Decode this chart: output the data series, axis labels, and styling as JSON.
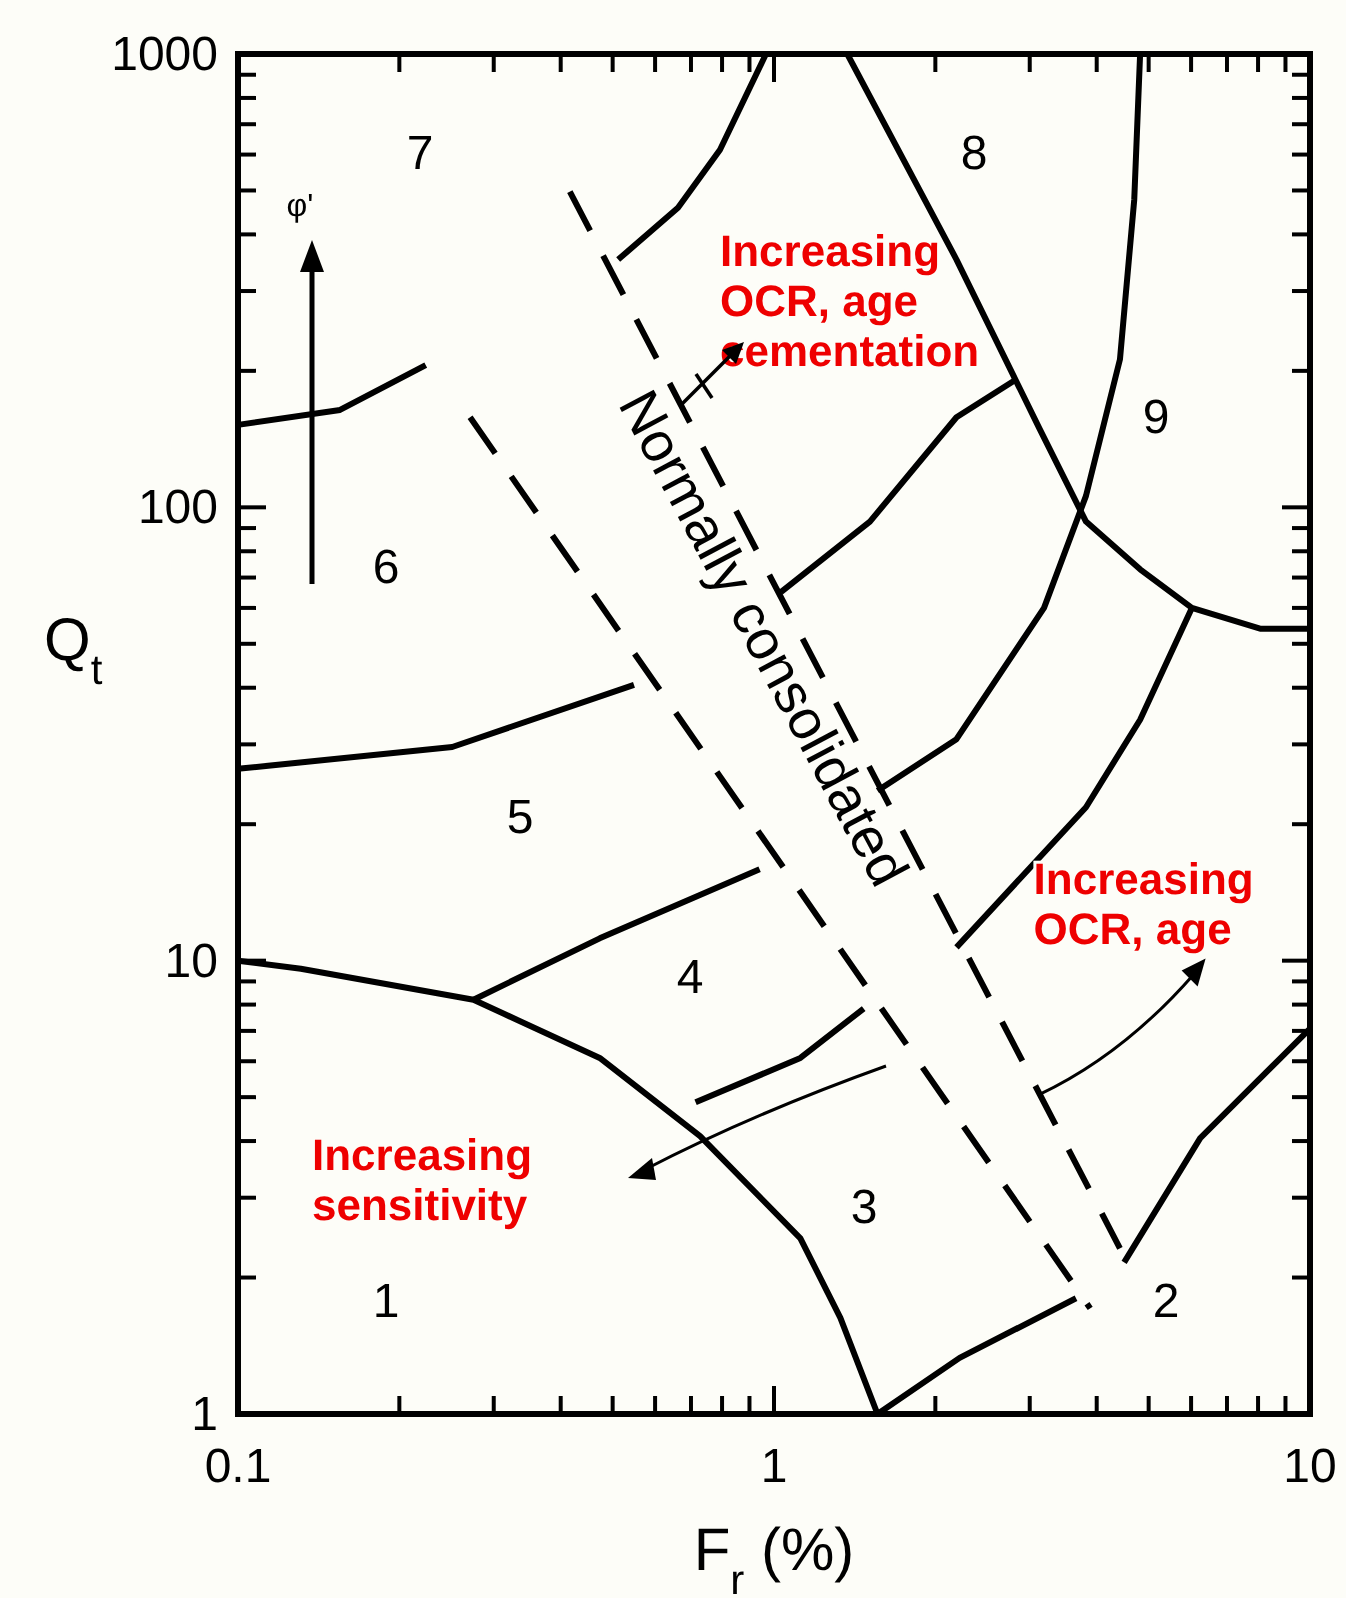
{
  "chart_data": {
    "type": "line",
    "xlabel": "F$_{r}$ (%)",
    "ylabel": "Q$_{t}$",
    "log": "xy",
    "grid": false,
    "marker": "none",
    "line_style": "solid",
    "xlim": [
      0.1,
      10
    ],
    "ylim": [
      1,
      1000
    ],
    "xticks": [
      {
        "value": 0.1,
        "label": "0.1"
      },
      {
        "value": 0.2,
        "label": null
      },
      {
        "value": 0.3,
        "label": null
      },
      {
        "value": 0.4,
        "label": null
      },
      {
        "value": 0.5,
        "label": null
      },
      {
        "value": 0.6,
        "label": null
      },
      {
        "value": 0.7,
        "label": null
      },
      {
        "value": 0.8,
        "label": null
      },
      {
        "value": 0.9,
        "label": null
      },
      1,
      {
        "value": 2,
        "label": null
      },
      {
        "value": 3,
        "label": null
      },
      {
        "value": 4,
        "label": null
      },
      {
        "value": 5,
        "label": null
      },
      {
        "value": 6,
        "label": null
      },
      {
        "value": 7,
        "label": null
      },
      {
        "value": 8,
        "label": null
      },
      {
        "value": 9,
        "label": null
      },
      10
    ],
    "yticks": [
      1,
      {
        "value": 2,
        "label": null
      },
      {
        "value": 3,
        "label": null
      },
      {
        "value": 4,
        "label": null
      },
      {
        "value": 5,
        "label": null
      },
      {
        "value": 6,
        "label": null
      },
      {
        "value": 7,
        "label": null
      },
      {
        "value": 8,
        "label": null
      },
      {
        "value": 9,
        "label": null
      },
      10,
      {
        "value": 20,
        "label": null
      },
      {
        "value": 30,
        "label": null
      },
      {
        "value": 40,
        "label": null
      },
      {
        "value": 50,
        "label": null
      },
      {
        "value": 60,
        "label": null
      },
      {
        "value": 70,
        "label": null
      },
      {
        "value": 80,
        "label": null
      },
      {
        "value": 90,
        "label": null
      },
      100,
      {
        "value": 200,
        "label": null
      },
      {
        "value": 300,
        "label": null
      },
      {
        "value": 400,
        "label": null
      },
      {
        "value": 500,
        "label": null
      },
      {
        "value": 600,
        "label": null
      },
      {
        "value": 700,
        "label": null
      },
      {
        "value": 800,
        "label": null
      },
      {
        "value": 900,
        "label": null
      },
      1000
    ],
    "series": [
      {
        "color": "#000000",
        "x": [
          0.1,
          0.131,
          0.275,
          0.473,
          0.728,
          1.12,
          1.33,
          1.56
        ],
        "values": [
          10,
          9.6,
          8.2,
          6.1,
          4.1,
          2.44,
          1.63,
          1
        ]
      },
      {
        "color": "#000000",
        "x": [
          1.56,
          2.22,
          3.66
        ],
        "values": [
          1,
          1.33,
          1.8
        ]
      },
      {
        "color": "#000000",
        "x": [
          4.5,
          6.24,
          8.79,
          10
        ],
        "values": [
          2.16,
          4.06,
          6.08,
          7.08
        ]
      },
      {
        "color": "#000000",
        "x": [
          0.714,
          1.12,
          1.47
        ],
        "values": [
          4.87,
          6.1,
          7.84
        ]
      },
      {
        "color": "#000000",
        "x": [
          2.19,
          3.82,
          4.82,
          6.02
        ],
        "values": [
          10.7,
          21.8,
          34,
          60
        ]
      },
      {
        "color": "#000000",
        "x": [
          0.275,
          0.473,
          0.94
        ],
        "values": [
          8.2,
          11.2,
          15.9
        ]
      },
      {
        "color": "#000000",
        "x": [
          1.56,
          2.19,
          3.19,
          3.82,
          4.42,
          4.7,
          4.82
        ],
        "values": [
          23.7,
          30.8,
          60,
          106,
          212,
          477,
          1000
        ]
      },
      {
        "color": "#000000",
        "x": [
          0.1,
          0.251,
          0.548
        ],
        "values": [
          26.5,
          29.6,
          40.6
        ]
      },
      {
        "color": "#000000",
        "x": [
          1.03,
          1.51,
          2.19,
          2.8
        ],
        "values": [
          65,
          93,
          158,
          190
        ]
      },
      {
        "color": "#000000",
        "x": [
          0.1,
          0.155,
          0.224
        ],
        "values": [
          152,
          164,
          206
        ]
      },
      {
        "color": "#000000",
        "x": [
          0.512,
          0.662,
          0.793,
          0.966
        ],
        "values": [
          352,
          458,
          615,
          1000
        ]
      },
      {
        "color": "#000000",
        "x": [
          1.37,
          2.19,
          3.13,
          3.82,
          4.82,
          6.02,
          8.07,
          10
        ],
        "values": [
          1000,
          352,
          149,
          93,
          73,
          60,
          54,
          54
        ]
      },
      {
        "color": "#000000",
        "line_style": "dashed",
        "x": [
          0.271,
          3.89
        ],
        "values": [
          158,
          1.71
        ]
      },
      {
        "color": "#000000",
        "line_style": "dashed",
        "x": [
          0.416,
          4.42
        ],
        "values": [
          497,
          2.32
        ]
      }
    ],
    "annotations": [
      "1",
      "2",
      "3",
      "4",
      "5",
      "6",
      "7",
      "8",
      "9",
      "Normally consolidated",
      "φ'",
      "Increasing\nOCR, age\ncementation",
      {
        "text": "Increasing\nOCR, age",
        "x": 3.13,
        "y": 5.07
      },
      "Increasing\nsensitivity"
    ]
  }
}
